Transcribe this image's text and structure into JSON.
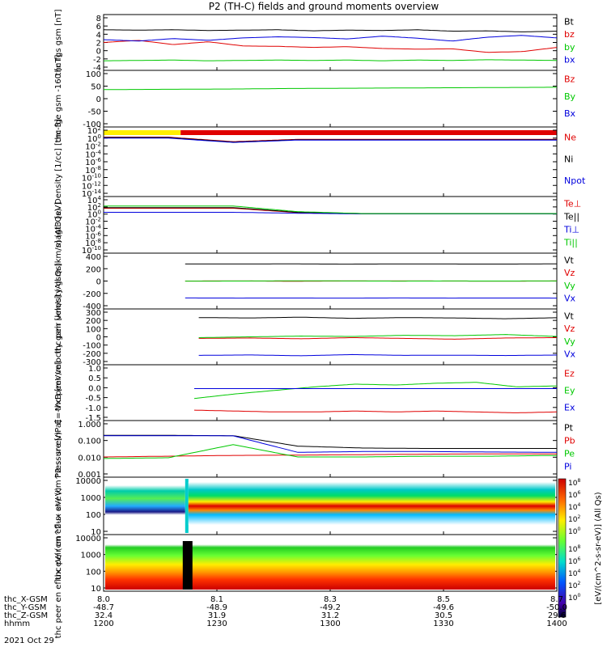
{
  "title": "P2 (TH-C) fields and ground moments overview",
  "colors": {
    "black": "#000000",
    "red": "#e00000",
    "green": "#00c800",
    "blue": "#0000dd",
    "yellow": "#ffee00"
  },
  "bottom_labels": {
    "rows": [
      "thc_X-GSM",
      "thc_Y-GSM",
      "thc_Z-GSM",
      "hhmm"
    ],
    "date": "2021 Oct 29",
    "columns": [
      {
        "values": [
          "8.0",
          "-48.7",
          "32.4",
          "1200"
        ]
      },
      {
        "values": [
          "8.1",
          "-48.9",
          "31.9",
          "1230"
        ]
      },
      {
        "values": [
          "8.3",
          "-49.2",
          "31.2",
          "1300"
        ]
      },
      {
        "values": [
          "8.5",
          "-49.6",
          "30.5",
          "1330"
        ]
      },
      {
        "values": [
          "8.7",
          "-50.0",
          "29.6",
          "1400"
        ]
      }
    ]
  },
  "colorbar": {
    "label": "[eV/(cm^2-s-sr-eV)] (All Qs)",
    "ticks_top": [
      "10^8",
      "10^6",
      "10^4",
      "10^2",
      "10^0"
    ],
    "ticks_bottom": [
      "10^8",
      "10^6",
      "10^4",
      "10^2",
      "10^0"
    ]
  },
  "chart_data": [
    {
      "type": "line",
      "ylabel": "thc fgs gsm [nT]",
      "yticks": [
        "8",
        "6",
        "4",
        "2",
        "0",
        "-2",
        "-4"
      ],
      "ylim": [
        -5,
        9
      ],
      "series": [
        {
          "name": "Bt",
          "color": "black",
          "values": [
            5.6,
            5.5,
            5.6,
            5.4,
            5.5,
            5.6,
            5.3,
            5.5,
            5.4,
            5.6,
            5.2,
            5.3,
            5.0,
            5.2
          ]
        },
        {
          "name": "bz",
          "color": "red",
          "values": [
            2.0,
            2.6,
            1.4,
            2.2,
            1.0,
            0.9,
            0.6,
            0.8,
            0.3,
            0.1,
            0.2,
            -0.8,
            -0.6,
            0.6
          ]
        },
        {
          "name": "by",
          "color": "green",
          "values": [
            -3.2,
            -3.1,
            -3.0,
            -3.2,
            -3.1,
            -3.0,
            -3.1,
            -3.0,
            -3.2,
            -3.0,
            -3.1,
            -2.9,
            -3.0,
            -3.1
          ]
        },
        {
          "name": "bx",
          "color": "blue",
          "values": [
            2.8,
            2.4,
            3.1,
            2.6,
            3.3,
            3.6,
            3.4,
            3.0,
            3.8,
            3.2,
            2.4,
            3.5,
            4.0,
            3.3
          ]
        }
      ],
      "legend": [
        {
          "label": "Bt",
          "color": "black"
        },
        {
          "label": "bz",
          "color": "red"
        },
        {
          "label": "by",
          "color": "green"
        },
        {
          "label": "bx",
          "color": "blue"
        }
      ]
    },
    {
      "type": "line",
      "ylabel": "thc fge gsm -160 [nT]",
      "yticks": [
        "100",
        "50",
        "0",
        "-50",
        "-100"
      ],
      "ylim": [
        -125,
        110
      ],
      "series": [
        {
          "name": "By",
          "color": "green",
          "values": [
            35,
            36,
            37,
            38,
            40,
            41,
            42,
            43,
            44,
            45,
            46
          ]
        }
      ],
      "legend": [
        {
          "label": "Bz",
          "color": "red"
        },
        {
          "label": "By",
          "color": "green"
        },
        {
          "label": "Bx",
          "color": "blue"
        }
      ]
    },
    {
      "type": "line",
      "ylabel": "Density [1/cc] [cm-3]",
      "yticks": [
        "10^2",
        "10^0",
        "10^-2",
        "10^-4",
        "10^-6",
        "10^-8",
        "10^-10",
        "10^-12",
        "10^-14"
      ],
      "ylim": [
        -14,
        2
      ],
      "log": true,
      "series": [
        {
          "name": "Ne",
          "color": "red",
          "values": [
            0.25,
            0.25,
            -0.9,
            -0.3,
            -0.3,
            -0.3,
            -0.3,
            -0.3
          ]
        },
        {
          "name": "Ni",
          "color": "black",
          "values": [
            0.15,
            0.15,
            -1.0,
            -0.4,
            -0.4,
            -0.4,
            -0.4,
            -0.4
          ]
        },
        {
          "name": "Npot",
          "color": "blue",
          "values": [
            0.0,
            0.0,
            -1.1,
            -0.5,
            -0.5,
            -0.5,
            -0.5,
            -0.5
          ]
        }
      ],
      "legend": [
        {
          "label": "Ne",
          "color": "red"
        },
        {
          "label": "Ni",
          "color": "black"
        },
        {
          "label": "Npot",
          "color": "blue"
        }
      ]
    },
    {
      "type": "line",
      "ylabel": "magt3 [eV]",
      "yticks": [
        "10^4",
        "10^2",
        "10^0",
        "10^-2",
        "10^-4",
        "10^-6",
        "10^-8",
        "10^-10"
      ],
      "ylim": [
        -11,
        5
      ],
      "log": true,
      "series": [
        {
          "name": "Te⊥",
          "color": "red",
          "values": [
            2.3,
            2.3,
            2.3,
            0.9,
            0.5,
            0.5,
            0.5,
            0.5
          ]
        },
        {
          "name": "Te||",
          "color": "black",
          "values": [
            2.5,
            2.5,
            2.5,
            1.0,
            0.6,
            0.6,
            0.6,
            0.6
          ]
        },
        {
          "name": "Ti⊥",
          "color": "blue",
          "values": [
            1.0,
            1.0,
            1.0,
            0.7,
            0.5,
            0.5,
            0.5,
            0.5
          ]
        },
        {
          "name": "Ti||",
          "color": "green",
          "values": [
            3.0,
            3.0,
            3.0,
            1.2,
            0.6,
            0.6,
            0.6,
            0.6
          ]
        }
      ],
      "legend": [
        {
          "label": "Te⊥",
          "color": "red"
        },
        {
          "label": "Te||",
          "color": "black"
        },
        {
          "label": "Ti⊥",
          "color": "blue"
        },
        {
          "label": "Ti||",
          "color": "green"
        }
      ]
    },
    {
      "type": "line",
      "ylabel": "thc peir velocity gsm [km/s] (All Qs)",
      "yticks": [
        "400",
        "200",
        "0",
        "-200",
        "-400"
      ],
      "ylim": [
        -420,
        420
      ],
      "series": [
        {
          "name": "Vt",
          "color": "black",
          "values": [
            290,
            290,
            292,
            288,
            291,
            290,
            289,
            292
          ]
        },
        {
          "name": "Vz",
          "color": "red",
          "values": [
            0,
            2,
            -3,
            1,
            2,
            0,
            -2,
            1
          ]
        },
        {
          "name": "Vy",
          "color": "green",
          "values": [
            -2,
            0,
            3,
            2,
            -1,
            1,
            0,
            2
          ]
        },
        {
          "name": "Vx",
          "color": "blue",
          "values": [
            -288,
            -290,
            -289,
            -291,
            -288,
            -290,
            -289,
            -290
          ]
        }
      ],
      "legend": [
        {
          "label": "Vt",
          "color": "black"
        },
        {
          "label": "Vz",
          "color": "red"
        },
        {
          "label": "Vy",
          "color": "green"
        },
        {
          "label": "Vx",
          "color": "blue"
        }
      ]
    },
    {
      "type": "line",
      "ylabel": "thc peer velocity gsm [km/s] (All Qs)",
      "yticks": [
        "300",
        "200",
        "100",
        "0",
        "-100",
        "-200",
        "-300"
      ],
      "ylim": [
        -320,
        320
      ],
      "series": [
        {
          "name": "Vt",
          "color": "black",
          "values": [
            250,
            245,
            255,
            240,
            250,
            245,
            235,
            248
          ]
        },
        {
          "name": "Vz",
          "color": "red",
          "values": [
            -20,
            -15,
            -25,
            -10,
            -20,
            -30,
            -15,
            -10
          ]
        },
        {
          "name": "Vy",
          "color": "green",
          "values": [
            -10,
            0,
            10,
            5,
            20,
            15,
            30,
            5
          ]
        },
        {
          "name": "Vx",
          "color": "blue",
          "values": [
            -240,
            -235,
            -245,
            -230,
            -240,
            -238,
            -242,
            -236
          ]
        }
      ],
      "legend": [
        {
          "label": "Vt",
          "color": "black"
        },
        {
          "label": "Vz",
          "color": "red"
        },
        {
          "label": "Vy",
          "color": "green"
        },
        {
          "label": "Vx",
          "color": "blue"
        }
      ]
    },
    {
      "type": "line",
      "ylabel": "E=-VxB [mV/m]",
      "yticks": [
        "1.0",
        "0.5",
        "0.0",
        "-0.5",
        "-1.0",
        "-1.5"
      ],
      "ylim": [
        -1.6,
        1.15
      ],
      "series": [
        {
          "name": "Ez",
          "color": "red",
          "values": [
            -1.2,
            -1.25,
            -1.3,
            -1.3,
            -1.25,
            -1.3,
            -1.25,
            -1.3,
            -1.35,
            -1.3
          ]
        },
        {
          "name": "Ey",
          "color": "green",
          "values": [
            -0.55,
            -0.3,
            -0.1,
            0.1,
            0.25,
            0.2,
            0.3,
            0.35,
            0.1,
            0.15
          ]
        },
        {
          "name": "Ex",
          "color": "blue",
          "values": [
            0.0,
            0.0,
            0.0,
            0.0,
            0.0,
            0.0,
            0.0,
            0.0,
            0.0,
            0.0
          ]
        }
      ],
      "legend": [
        {
          "label": "Ez",
          "color": "red"
        },
        {
          "label": "Ey",
          "color": "green"
        },
        {
          "label": "Ex",
          "color": "blue"
        }
      ]
    },
    {
      "type": "line",
      "ylabel": "Pressure [nPa]",
      "yticks": [
        "1.000",
        "0.100",
        "0.010",
        "0.001"
      ],
      "ylim": [
        -3.1,
        0.15
      ],
      "log": true,
      "series": [
        {
          "name": "Pt",
          "color": "black",
          "values": [
            -0.6,
            -0.6,
            -0.62,
            -1.3,
            -1.42,
            -1.45,
            -1.45,
            -1.45
          ]
        },
        {
          "name": "Pb",
          "color": "red",
          "values": [
            -2.0,
            -1.95,
            -1.9,
            -1.88,
            -1.85,
            -1.82,
            -1.8,
            -1.8
          ]
        },
        {
          "name": "Pe",
          "color": "green",
          "values": [
            -2.1,
            -2.05,
            -1.2,
            -2.0,
            -2.0,
            -1.95,
            -1.95,
            -1.9
          ]
        },
        {
          "name": "Pi",
          "color": "blue",
          "values": [
            -0.62,
            -0.62,
            -0.63,
            -1.7,
            -1.65,
            -1.65,
            -1.68,
            -1.7
          ]
        }
      ],
      "legend": [
        {
          "label": "Pt",
          "color": "black"
        },
        {
          "label": "Pb",
          "color": "red"
        },
        {
          "label": "Pe",
          "color": "green"
        },
        {
          "label": "Pi",
          "color": "blue"
        }
      ]
    },
    {
      "type": "heatmap",
      "ylabel": "thc peir en eflux eV/ (cm^2-s- sr-eV)",
      "yticks": [
        "10000",
        "1000",
        "100",
        "10"
      ],
      "log": true,
      "ylim": [
        0.7,
        4.2
      ]
    },
    {
      "type": "heatmap",
      "ylabel": "thc peer en eflux eV/ (cm^2-s- sr-eV)",
      "yticks": [
        "10000",
        "1000",
        "100",
        "10"
      ],
      "log": true,
      "ylim": [
        0.7,
        4.2
      ]
    }
  ]
}
